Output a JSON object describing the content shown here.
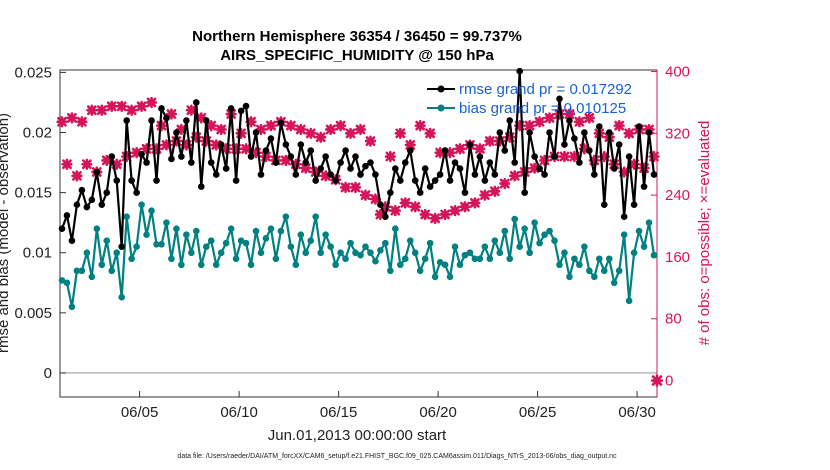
{
  "chart_data": {
    "type": "line",
    "title": "Northern Hemisphere 36354 / 36450 = 99.737%",
    "subtitle": "AIRS_SPECIFIC_HUMIDITY @ 150 hPa",
    "xlabel": "Jun.01,2013 00:00:00 start",
    "ylabel": "rmse and bias (model - observation)",
    "y2label": "# of obs: o=possible; ×=evaluated",
    "xlim": [
      1,
      31
    ],
    "ylim": [
      -0.002,
      0.0252
    ],
    "y2lim": [
      -21.3,
      402
    ],
    "x_ticks": [
      5,
      10,
      15,
      20,
      25,
      30
    ],
    "x_tick_labels": [
      "06/05",
      "06/10",
      "06/15",
      "06/20",
      "06/25",
      "06/30"
    ],
    "y_ticks": [
      0,
      0.005,
      0.01,
      0.015,
      0.02,
      0.025
    ],
    "y_tick_labels": [
      "0",
      "0.005",
      "0.01",
      "0.015",
      "0.02",
      "0.025"
    ],
    "y2_ticks": [
      0,
      80,
      160,
      240,
      320,
      400
    ],
    "y2_tick_labels": [
      "0",
      "80",
      "160",
      "240",
      "320",
      "400"
    ],
    "zero_line": 0,
    "legend": [
      {
        "label": "rmse grand pr = 0.017292",
        "color": "#000000"
      },
      {
        "label": "bias grand pr = 0.010125",
        "color": "#008080"
      }
    ],
    "series": [
      {
        "name": "rmse",
        "axis": "left",
        "color": "#000000",
        "x": [
          1.1,
          1.35,
          1.6,
          1.85,
          2.1,
          2.35,
          2.6,
          2.85,
          3.1,
          3.35,
          3.6,
          3.85,
          4.1,
          4.35,
          4.6,
          4.85,
          5.1,
          5.35,
          5.6,
          5.85,
          6.1,
          6.35,
          6.6,
          6.85,
          7.1,
          7.35,
          7.6,
          7.85,
          8.1,
          8.35,
          8.6,
          8.85,
          9.1,
          9.35,
          9.6,
          9.85,
          10.1,
          10.35,
          10.6,
          10.85,
          11.1,
          11.35,
          11.6,
          11.85,
          12.1,
          12.35,
          12.6,
          12.85,
          13.1,
          13.35,
          13.6,
          13.85,
          14.1,
          14.35,
          14.6,
          14.85,
          15.1,
          15.35,
          15.6,
          15.85,
          16.1,
          16.35,
          16.6,
          16.85,
          17.1,
          17.35,
          17.6,
          17.85,
          18.1,
          18.35,
          18.6,
          18.85,
          19.1,
          19.35,
          19.6,
          19.85,
          20.1,
          20.35,
          20.6,
          20.85,
          21.1,
          21.35,
          21.6,
          21.85,
          22.1,
          22.35,
          22.6,
          22.85,
          23.1,
          23.35,
          23.6,
          23.85,
          24.1,
          24.35,
          24.6,
          24.85,
          25.1,
          25.35,
          25.6,
          25.85,
          26.1,
          26.35,
          26.6,
          26.85,
          27.1,
          27.35,
          27.6,
          27.85,
          28.1,
          28.35,
          28.6,
          28.85,
          29.1,
          29.35,
          29.6,
          29.85,
          30.1,
          30.35,
          30.6,
          30.85
        ],
        "values": [
          0.012,
          0.0131,
          0.011,
          0.014,
          0.0152,
          0.0138,
          0.0144,
          0.0167,
          0.014,
          0.015,
          0.018,
          0.016,
          0.0105,
          0.021,
          0.016,
          0.015,
          0.0182,
          0.0175,
          0.021,
          0.016,
          0.022,
          0.0212,
          0.0178,
          0.02,
          0.018,
          0.021,
          0.0175,
          0.0225,
          0.0155,
          0.021,
          0.0175,
          0.0165,
          0.019,
          0.017,
          0.022,
          0.016,
          0.0218,
          0.0222,
          0.018,
          0.02,
          0.0165,
          0.0185,
          0.0195,
          0.0175,
          0.0208,
          0.019,
          0.018,
          0.0165,
          0.019,
          0.0175,
          0.0185,
          0.016,
          0.017,
          0.018,
          0.0165,
          0.016,
          0.0175,
          0.0185,
          0.017,
          0.018,
          0.0165,
          0.0172,
          0.0175,
          0.0165,
          0.014,
          0.013,
          0.015,
          0.017,
          0.016,
          0.0175,
          0.0185,
          0.016,
          0.015,
          0.017,
          0.0155,
          0.016,
          0.0165,
          0.0185,
          0.016,
          0.0175,
          0.017,
          0.015,
          0.019,
          0.0165,
          0.018,
          0.016,
          0.0175,
          0.0165,
          0.02,
          0.0185,
          0.021,
          0.0175,
          0.0251,
          0.015,
          0.02,
          0.018,
          0.017,
          0.0165,
          0.02,
          0.018,
          0.0228,
          0.019,
          0.021,
          0.0195,
          0.0175,
          0.02,
          0.0185,
          0.0165,
          0.0205,
          0.014,
          0.02,
          0.017,
          0.019,
          0.013,
          0.018,
          0.014,
          0.0205,
          0.0155,
          0.02,
          0.0165
        ]
      },
      {
        "name": "bias",
        "axis": "left",
        "color": "#008080",
        "x": [
          1.1,
          1.35,
          1.6,
          1.85,
          2.1,
          2.35,
          2.6,
          2.85,
          3.1,
          3.35,
          3.6,
          3.85,
          4.1,
          4.35,
          4.6,
          4.85,
          5.1,
          5.35,
          5.6,
          5.85,
          6.1,
          6.35,
          6.6,
          6.85,
          7.1,
          7.35,
          7.6,
          7.85,
          8.1,
          8.35,
          8.6,
          8.85,
          9.1,
          9.35,
          9.6,
          9.85,
          10.1,
          10.35,
          10.6,
          10.85,
          11.1,
          11.35,
          11.6,
          11.85,
          12.1,
          12.35,
          12.6,
          12.85,
          13.1,
          13.35,
          13.6,
          13.85,
          14.1,
          14.35,
          14.6,
          14.85,
          15.1,
          15.35,
          15.6,
          15.85,
          16.1,
          16.35,
          16.6,
          16.85,
          17.1,
          17.35,
          17.6,
          17.85,
          18.1,
          18.35,
          18.6,
          18.85,
          19.1,
          19.35,
          19.6,
          19.85,
          20.1,
          20.35,
          20.6,
          20.85,
          21.1,
          21.35,
          21.6,
          21.85,
          22.1,
          22.35,
          22.6,
          22.85,
          23.1,
          23.35,
          23.6,
          23.85,
          24.1,
          24.35,
          24.6,
          24.85,
          25.1,
          25.35,
          25.6,
          25.85,
          26.1,
          26.35,
          26.6,
          26.85,
          27.1,
          27.35,
          27.6,
          27.85,
          28.1,
          28.35,
          28.6,
          28.85,
          29.1,
          29.35,
          29.6,
          29.85,
          30.1,
          30.35,
          30.6,
          30.85
        ],
        "values": [
          0.0077,
          0.0075,
          0.0055,
          0.0085,
          0.0085,
          0.01,
          0.008,
          0.012,
          0.009,
          0.011,
          0.0085,
          0.01,
          0.0063,
          0.013,
          0.0095,
          0.0105,
          0.014,
          0.0115,
          0.0135,
          0.0107,
          0.0107,
          0.0125,
          0.0095,
          0.012,
          0.009,
          0.0115,
          0.01,
          0.0118,
          0.009,
          0.0105,
          0.011,
          0.009,
          0.01,
          0.0108,
          0.012,
          0.0095,
          0.011,
          0.0108,
          0.009,
          0.0118,
          0.01,
          0.0112,
          0.012,
          0.0095,
          0.0118,
          0.013,
          0.0105,
          0.009,
          0.0115,
          0.01,
          0.011,
          0.013,
          0.01,
          0.0115,
          0.0105,
          0.009,
          0.01,
          0.0095,
          0.0108,
          0.01,
          0.0098,
          0.0105,
          0.01,
          0.0093,
          0.0102,
          0.0108,
          0.0085,
          0.012,
          0.009,
          0.0095,
          0.011,
          0.01,
          0.0085,
          0.0095,
          0.0108,
          0.008,
          0.0092,
          0.009,
          0.008,
          0.0105,
          0.009,
          0.0098,
          0.01,
          0.0095,
          0.0095,
          0.0105,
          0.0095,
          0.011,
          0.01,
          0.0118,
          0.0095,
          0.0128,
          0.0105,
          0.012,
          0.01,
          0.0125,
          0.0108,
          0.0115,
          0.0118,
          0.011,
          0.009,
          0.01,
          0.008,
          0.0095,
          0.009,
          0.0105,
          0.0085,
          0.008,
          0.0095,
          0.0085,
          0.0095,
          0.0075,
          0.0085,
          0.0115,
          0.006,
          0.01,
          0.0118,
          0.0105,
          0.0125,
          0.0098
        ]
      },
      {
        "name": "obs evaluated",
        "axis": "right",
        "color": "#d6145a",
        "marker": "x",
        "x": [
          1.1,
          1.35,
          1.6,
          1.85,
          2.1,
          2.35,
          2.6,
          2.85,
          3.1,
          3.35,
          3.6,
          3.85,
          4.1,
          4.35,
          4.6,
          4.85,
          5.1,
          5.35,
          5.6,
          5.85,
          6.1,
          6.35,
          6.6,
          6.85,
          7.1,
          7.35,
          7.6,
          7.85,
          8.1,
          8.35,
          8.6,
          8.85,
          9.1,
          9.35,
          9.6,
          9.85,
          10.1,
          10.35,
          10.6,
          10.85,
          11.1,
          11.35,
          11.6,
          11.85,
          12.1,
          12.35,
          12.6,
          12.85,
          13.1,
          13.35,
          13.6,
          13.85,
          14.1,
          14.35,
          14.6,
          14.85,
          15.1,
          15.35,
          15.6,
          15.85,
          16.1,
          16.35,
          16.6,
          16.85,
          17.1,
          17.35,
          17.6,
          17.85,
          18.1,
          18.35,
          18.6,
          18.85,
          19.1,
          19.35,
          19.6,
          19.85,
          20.1,
          20.35,
          20.6,
          20.85,
          21.1,
          21.35,
          21.6,
          21.85,
          22.1,
          22.35,
          22.6,
          22.85,
          23.1,
          23.35,
          23.6,
          23.85,
          24.1,
          24.35,
          24.6,
          24.85,
          25.1,
          25.35,
          25.6,
          25.85,
          26.1,
          26.35,
          26.6,
          26.85,
          27.1,
          27.35,
          27.6,
          27.85,
          28.1,
          28.35,
          28.6,
          28.85,
          29.1,
          29.35,
          29.6,
          29.85,
          30.1,
          30.35,
          30.6,
          30.85
        ],
        "values": [
          335,
          280,
          340,
          265,
          335,
          280,
          350,
          270,
          350,
          285,
          355,
          280,
          355,
          290,
          350,
          295,
          355,
          300,
          360,
          300,
          330,
          305,
          345,
          310,
          325,
          305,
          350,
          315,
          340,
          310,
          330,
          305,
          325,
          300,
          345,
          300,
          320,
          300,
          335,
          295,
          325,
          290,
          330,
          285,
          335,
          285,
          330,
          280,
          325,
          275,
          320,
          270,
          315,
          265,
          325,
          260,
          330,
          250,
          320,
          250,
          325,
          240,
          310,
          235,
          215,
          225,
          290,
          220,
          320,
          230,
          305,
          225,
          330,
          215,
          320,
          210,
          295,
          215,
          295,
          220,
          300,
          225,
          305,
          230,
          300,
          240,
          310,
          245,
          310,
          255,
          315,
          265,
          330,
          270,
          330,
          275,
          335,
          285,
          340,
          290,
          345,
          290,
          345,
          290,
          335,
          300,
          340,
          285,
          320,
          290,
          315,
          280,
          330,
          270,
          320,
          280,
          325,
          275,
          325,
          290
        ]
      }
    ],
    "annotations": [
      {
        "text": "0",
        "axis": "right",
        "marker_value": 0
      }
    ]
  },
  "footnote": "data file: /Users/raeder/DAI/ATM_forcXX/CAM6_setup/f.e21.FHIST_BGC.f09_025.CAM6assim.011/Diags_NTrS_2013-06/obs_diag_output.nc"
}
